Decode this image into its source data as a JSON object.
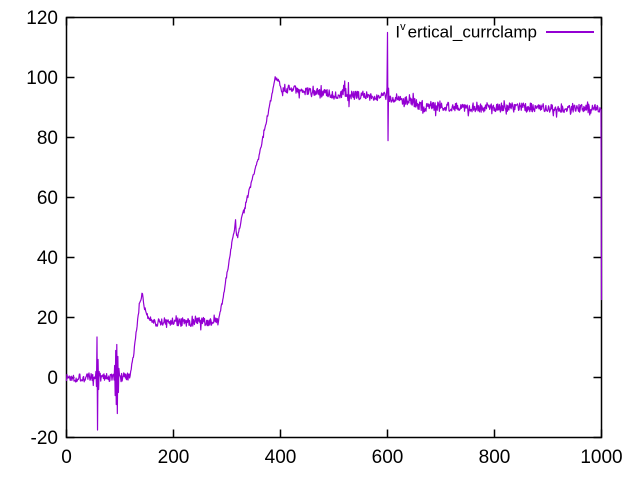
{
  "window": {
    "background": "#ffffff",
    "axis_color": "#000000"
  },
  "legend": {
    "prefix": "I",
    "superscript": "v",
    "rest": "ertical_currclamp",
    "color": "#9400d3"
  },
  "chart_data": {
    "type": "line",
    "title": "",
    "xlabel": "",
    "ylabel": "",
    "grid": false,
    "legend_position": "top-right-inside",
    "x_axis": {
      "min": 0,
      "max": 1000,
      "ticks": [
        0,
        200,
        400,
        600,
        800,
        1000
      ]
    },
    "y_axis": {
      "min": -20,
      "max": 120,
      "ticks": [
        -20,
        0,
        20,
        40,
        60,
        80,
        100,
        120
      ]
    },
    "series": [
      {
        "name": "Iᵛertical_currclamp",
        "color": "#9400d3",
        "base_points": [
          [
            0,
            0
          ],
          [
            118,
            0
          ],
          [
            126,
            8
          ],
          [
            136,
            24
          ],
          [
            141,
            28
          ],
          [
            146,
            23.5
          ],
          [
            153,
            20
          ],
          [
            166,
            18.5
          ],
          [
            284,
            18.5
          ],
          [
            290,
            24
          ],
          [
            316,
            52
          ],
          [
            318,
            47
          ],
          [
            320,
            46.5
          ],
          [
            327,
            53
          ],
          [
            360,
            74
          ],
          [
            391,
            100
          ],
          [
            394,
            99.5
          ],
          [
            402,
            96.5
          ],
          [
            460,
            95
          ],
          [
            600,
            93.5
          ],
          [
            665,
            90.5
          ],
          [
            990,
            89.5
          ],
          [
            999,
            89.5
          ],
          [
            1000,
            26
          ]
        ],
        "noise_bands": [
          {
            "x0": 0,
            "x1": 118,
            "amp": 1.6
          },
          {
            "x0": 118,
            "x1": 160,
            "amp": 0.9
          },
          {
            "x0": 160,
            "x1": 284,
            "amp": 1.5
          },
          {
            "x0": 284,
            "x1": 390,
            "amp": 0.7
          },
          {
            "x0": 390,
            "x1": 612,
            "amp": 1.5
          },
          {
            "x0": 612,
            "x1": 700,
            "amp": 1.9
          },
          {
            "x0": 700,
            "x1": 998,
            "amp": 1.6
          },
          {
            "x0": 998,
            "x1": 1000,
            "amp": 0.3
          }
        ],
        "spikes": [
          {
            "x": 58,
            "offsets": [
              [
                -3,
                2
              ],
              [
                -2,
                -3
              ],
              [
                -1,
                13.5
              ],
              [
                0,
                -17.5
              ],
              [
                1,
                6
              ],
              [
                2,
                -4
              ],
              [
                3,
                2
              ]
            ]
          },
          {
            "x": 95,
            "offsets": [
              [
                -5,
                4
              ],
              [
                -4,
                -6
              ],
              [
                -3,
                9
              ],
              [
                -2,
                -9
              ],
              [
                -1,
                11
              ],
              [
                0,
                -12
              ],
              [
                1,
                7
              ],
              [
                2,
                -5
              ],
              [
                3,
                3
              ]
            ]
          },
          {
            "x": 520,
            "offsets": [
              [
                -4,
                1.5
              ],
              [
                -2,
                3
              ],
              [
                0,
                4.5
              ],
              [
                2,
                2
              ]
            ]
          },
          {
            "x": 527,
            "offsets": [
              [
                -1,
                -2
              ],
              [
                0,
                4
              ],
              [
                1,
                -4
              ]
            ]
          },
          {
            "x": 600,
            "offsets": [
              [
                -1,
                3
              ],
              [
                0,
                21.5
              ],
              [
                1,
                -14.5
              ],
              [
                2,
                3
              ]
            ]
          }
        ]
      }
    ]
  }
}
